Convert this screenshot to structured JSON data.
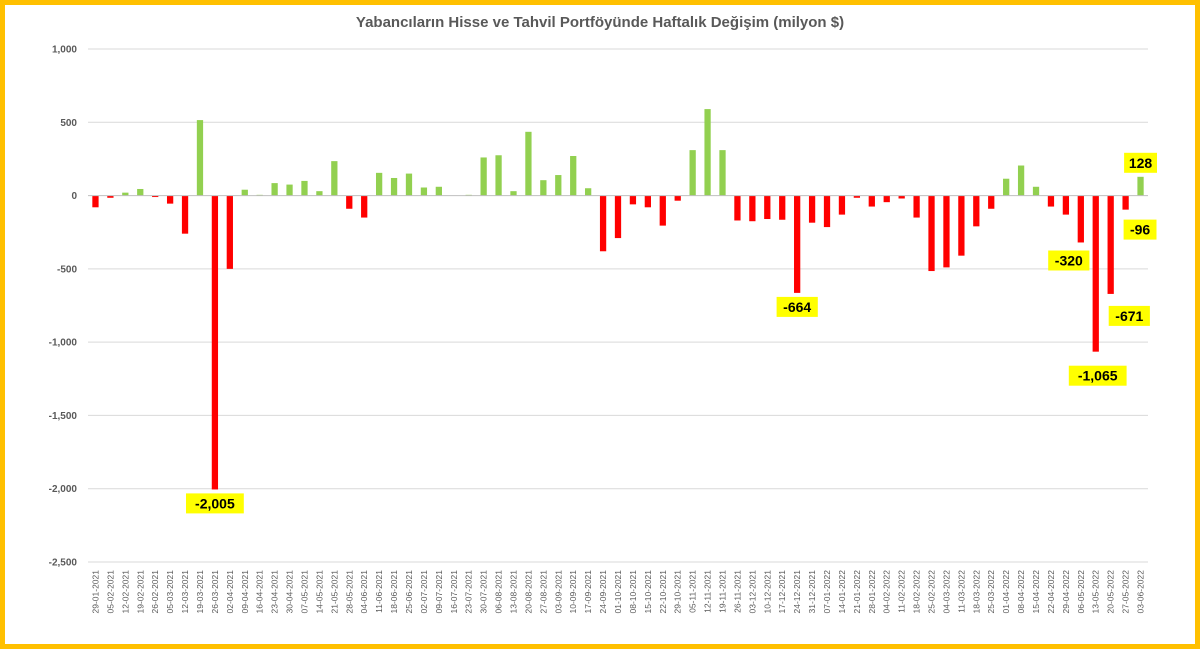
{
  "chart_data": {
    "type": "bar",
    "title": "Yabancıların Hisse ve Tahvil Portföyünde Haftalık Değişim (milyon $)",
    "xlabel": "",
    "ylabel": "",
    "ylim": [
      -2500,
      1000
    ],
    "yticks": [
      1000,
      500,
      0,
      -500,
      -1000,
      -1500,
      -2000,
      -2500
    ],
    "ytick_labels": [
      "1,000",
      "500",
      "0",
      "-500",
      "-1,000",
      "-1,500",
      "-2,000",
      "-2,500"
    ],
    "grid": true,
    "legend": "none",
    "colors": {
      "positive": "#92D050",
      "negative": "#FF0000",
      "label_bg": "#FFFF00",
      "frame": "#FFC000",
      "grid": "#D9D9D9",
      "axis": "#BFBFBF"
    },
    "categories": [
      "29-01-2021",
      "05-02-2021",
      "12-02-2021",
      "19-02-2021",
      "26-02-2021",
      "05-03-2021",
      "12-03-2021",
      "19-03-2021",
      "26-03-2021",
      "02-04-2021",
      "09-04-2021",
      "16-04-2021",
      "23-04-2021",
      "30-04-2021",
      "07-05-2021",
      "14-05-2021",
      "21-05-2021",
      "28-05-2021",
      "04-06-2021",
      "11-06-2021",
      "18-06-2021",
      "25-06-2021",
      "02-07-2021",
      "09-07-2021",
      "16-07-2021",
      "23-07-2021",
      "30-07-2021",
      "06-08-2021",
      "13-08-2021",
      "20-08-2021",
      "27-08-2021",
      "03-09-2021",
      "10-09-2021",
      "17-09-2021",
      "24-09-2021",
      "01-10-2021",
      "08-10-2021",
      "15-10-2021",
      "22-10-2021",
      "29-10-2021",
      "05-11-2021",
      "12-11-2021",
      "19-11-2021",
      "26-11-2021",
      "03-12-2021",
      "10-12-2021",
      "17-12-2021",
      "24-12-2021",
      "31-12-2021",
      "07-01-2022",
      "14-01-2022",
      "21-01-2022",
      "28-01-2022",
      "04-02-2022",
      "11-02-2022",
      "18-02-2022",
      "25-02-2022",
      "04-03-2022",
      "11-03-2022",
      "18-03-2022",
      "25-03-2022",
      "01-04-2022",
      "08-04-2022",
      "15-04-2022",
      "22-04-2022",
      "29-04-2022",
      "06-05-2022",
      "13-05-2022",
      "20-05-2022",
      "27-05-2022",
      "03-06-2022"
    ],
    "values": [
      -80,
      -15,
      20,
      45,
      -10,
      -55,
      -260,
      515,
      -2005,
      -500,
      40,
      5,
      85,
      75,
      100,
      30,
      235,
      -90,
      -150,
      155,
      120,
      150,
      55,
      60,
      0,
      5,
      260,
      275,
      30,
      435,
      105,
      140,
      270,
      50,
      -380,
      -290,
      -60,
      -80,
      -205,
      -35,
      310,
      590,
      310,
      -170,
      -175,
      -160,
      -165,
      -664,
      -185,
      -215,
      -130,
      -15,
      -75,
      -45,
      -20,
      -150,
      -515,
      -490,
      -410,
      -210,
      -90,
      115,
      205,
      60,
      -75,
      -130,
      -320,
      -1065,
      -671,
      -96,
      128
    ],
    "data_labels": [
      {
        "index": 8,
        "text": "-2,005"
      },
      {
        "index": 47,
        "text": "-664"
      },
      {
        "index": 66,
        "text": "-320"
      },
      {
        "index": 67,
        "text": "-1,065"
      },
      {
        "index": 68,
        "text": "-671"
      },
      {
        "index": 69,
        "text": "-96"
      },
      {
        "index": 70,
        "text": "128"
      }
    ]
  }
}
